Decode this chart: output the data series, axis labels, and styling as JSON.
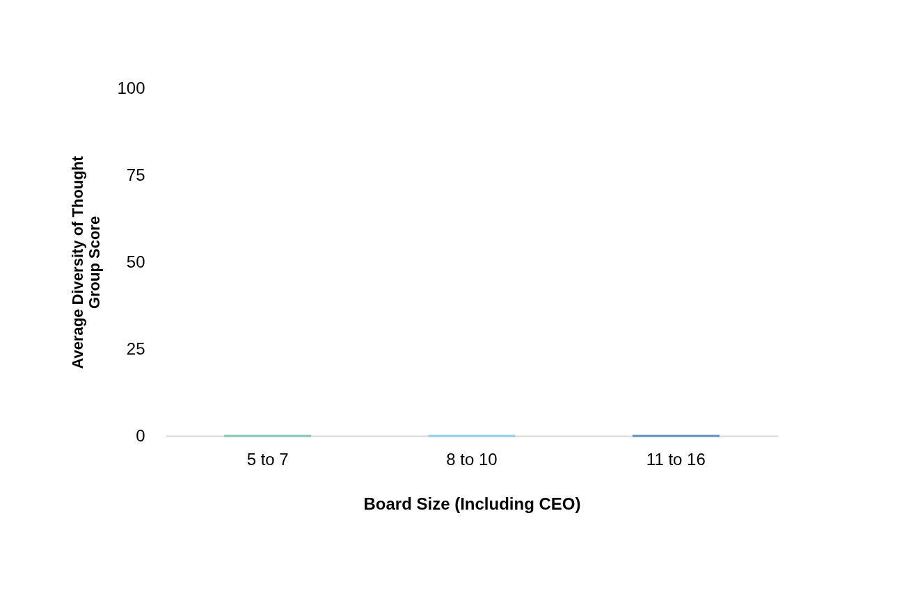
{
  "chart_data": {
    "type": "bar",
    "xlabel": "Board Size (Including CEO)",
    "ylabel": "Average Diversity of Thought\nGroup Score",
    "categories": [
      "5 to 7",
      "8 to 10",
      "11 to 16"
    ],
    "values": [
      0,
      0,
      0
    ],
    "colors": [
      "#7fc8b8",
      "#8ccfe3",
      "#5b8fc4"
    ],
    "ylim": [
      0,
      100
    ],
    "yticks": [
      0,
      25,
      50,
      75,
      100
    ],
    "grid": false
  }
}
